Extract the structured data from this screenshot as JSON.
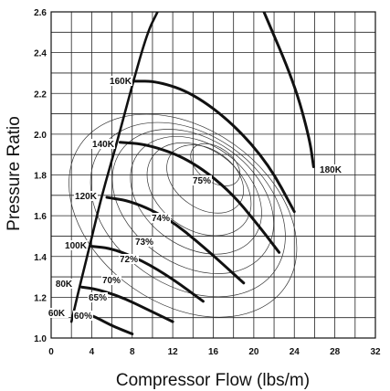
{
  "chart_data": {
    "type": "line",
    "title": "",
    "xlabel": "Compressor Flow (lbs/m)",
    "ylabel": "Pressure Ratio",
    "xlim": [
      0,
      32
    ],
    "ylim": [
      1.0,
      2.6
    ],
    "x_ticks": [
      "0",
      "4",
      "8",
      "12",
      "16",
      "20",
      "24",
      "28",
      "32"
    ],
    "y_ticks": [
      "1.0",
      "1.2",
      "1.4",
      "1.6",
      "1.8",
      "2.0",
      "2.2",
      "2.4",
      "2.6"
    ],
    "grid": true,
    "surge_line": {
      "x": [
        2.0,
        2.8,
        3.8,
        5.0,
        6.5,
        8.0,
        9.5,
        10.5
      ],
      "y": [
        1.08,
        1.25,
        1.45,
        1.7,
        1.96,
        2.24,
        2.5,
        2.6
      ]
    },
    "speed_lines": [
      {
        "name": "60K",
        "x": [
          3.5,
          4.5,
          6.0,
          8.0
        ],
        "y": [
          1.12,
          1.1,
          1.06,
          1.02
        ]
      },
      {
        "name": "80K",
        "x": [
          3.0,
          4.5,
          7.0,
          9.5,
          12.0
        ],
        "y": [
          1.25,
          1.24,
          1.2,
          1.14,
          1.08
        ]
      },
      {
        "name": "100K",
        "x": [
          4.0,
          6.0,
          9.0,
          12.0,
          15.0
        ],
        "y": [
          1.45,
          1.44,
          1.38,
          1.29,
          1.18
        ]
      },
      {
        "name": "120K",
        "x": [
          5.5,
          8.0,
          11.5,
          15.0,
          19.0
        ],
        "y": [
          1.69,
          1.67,
          1.59,
          1.45,
          1.27
        ]
      },
      {
        "name": "140K",
        "x": [
          6.8,
          9.5,
          13.5,
          17.5,
          20.5,
          22.5
        ],
        "y": [
          1.96,
          1.95,
          1.88,
          1.73,
          1.55,
          1.42
        ]
      },
      {
        "name": "160K",
        "x": [
          8.0,
          10.5,
          14.0,
          18.0,
          21.5,
          24.0
        ],
        "y": [
          2.26,
          2.26,
          2.2,
          2.05,
          1.85,
          1.62
        ]
      },
      {
        "name": "180K",
        "x": [
          21.0,
          24.0,
          25.5,
          25.9
        ],
        "y": [
          2.6,
          2.25,
          1.98,
          1.84
        ]
      }
    ],
    "rpm_labels": [
      "60K",
      "80K",
      "100K",
      "120K",
      "140K",
      "160K",
      "180K"
    ],
    "efficiency_labels": [
      "60%",
      "65%",
      "70%",
      "72%",
      "73%",
      "74%",
      "75%"
    ],
    "efficiency_islands": [
      {
        "name": "60%",
        "cx": 13.0,
        "cy": 1.6,
        "rx": 11.0,
        "ry": 0.65,
        "rot": -55
      },
      {
        "name": "65%",
        "cx": 13.5,
        "cy": 1.63,
        "rx": 9.6,
        "ry": 0.55,
        "rot": -55
      },
      {
        "name": "70%",
        "cx": 14.0,
        "cy": 1.67,
        "rx": 8.0,
        "ry": 0.45,
        "rot": -55
      },
      {
        "name": "72%",
        "cx": 14.3,
        "cy": 1.7,
        "rx": 6.6,
        "ry": 0.36,
        "rot": -55
      },
      {
        "name": "73%",
        "cx": 14.6,
        "cy": 1.73,
        "rx": 5.2,
        "ry": 0.28,
        "rot": -55
      },
      {
        "name": "74%",
        "cx": 15.2,
        "cy": 1.78,
        "rx": 3.8,
        "ry": 0.2,
        "rot": -55
      },
      {
        "name": "75%",
        "cx": 16.2,
        "cy": 1.85,
        "rx": 2.2,
        "ry": 0.12,
        "rot": -55
      }
    ]
  }
}
